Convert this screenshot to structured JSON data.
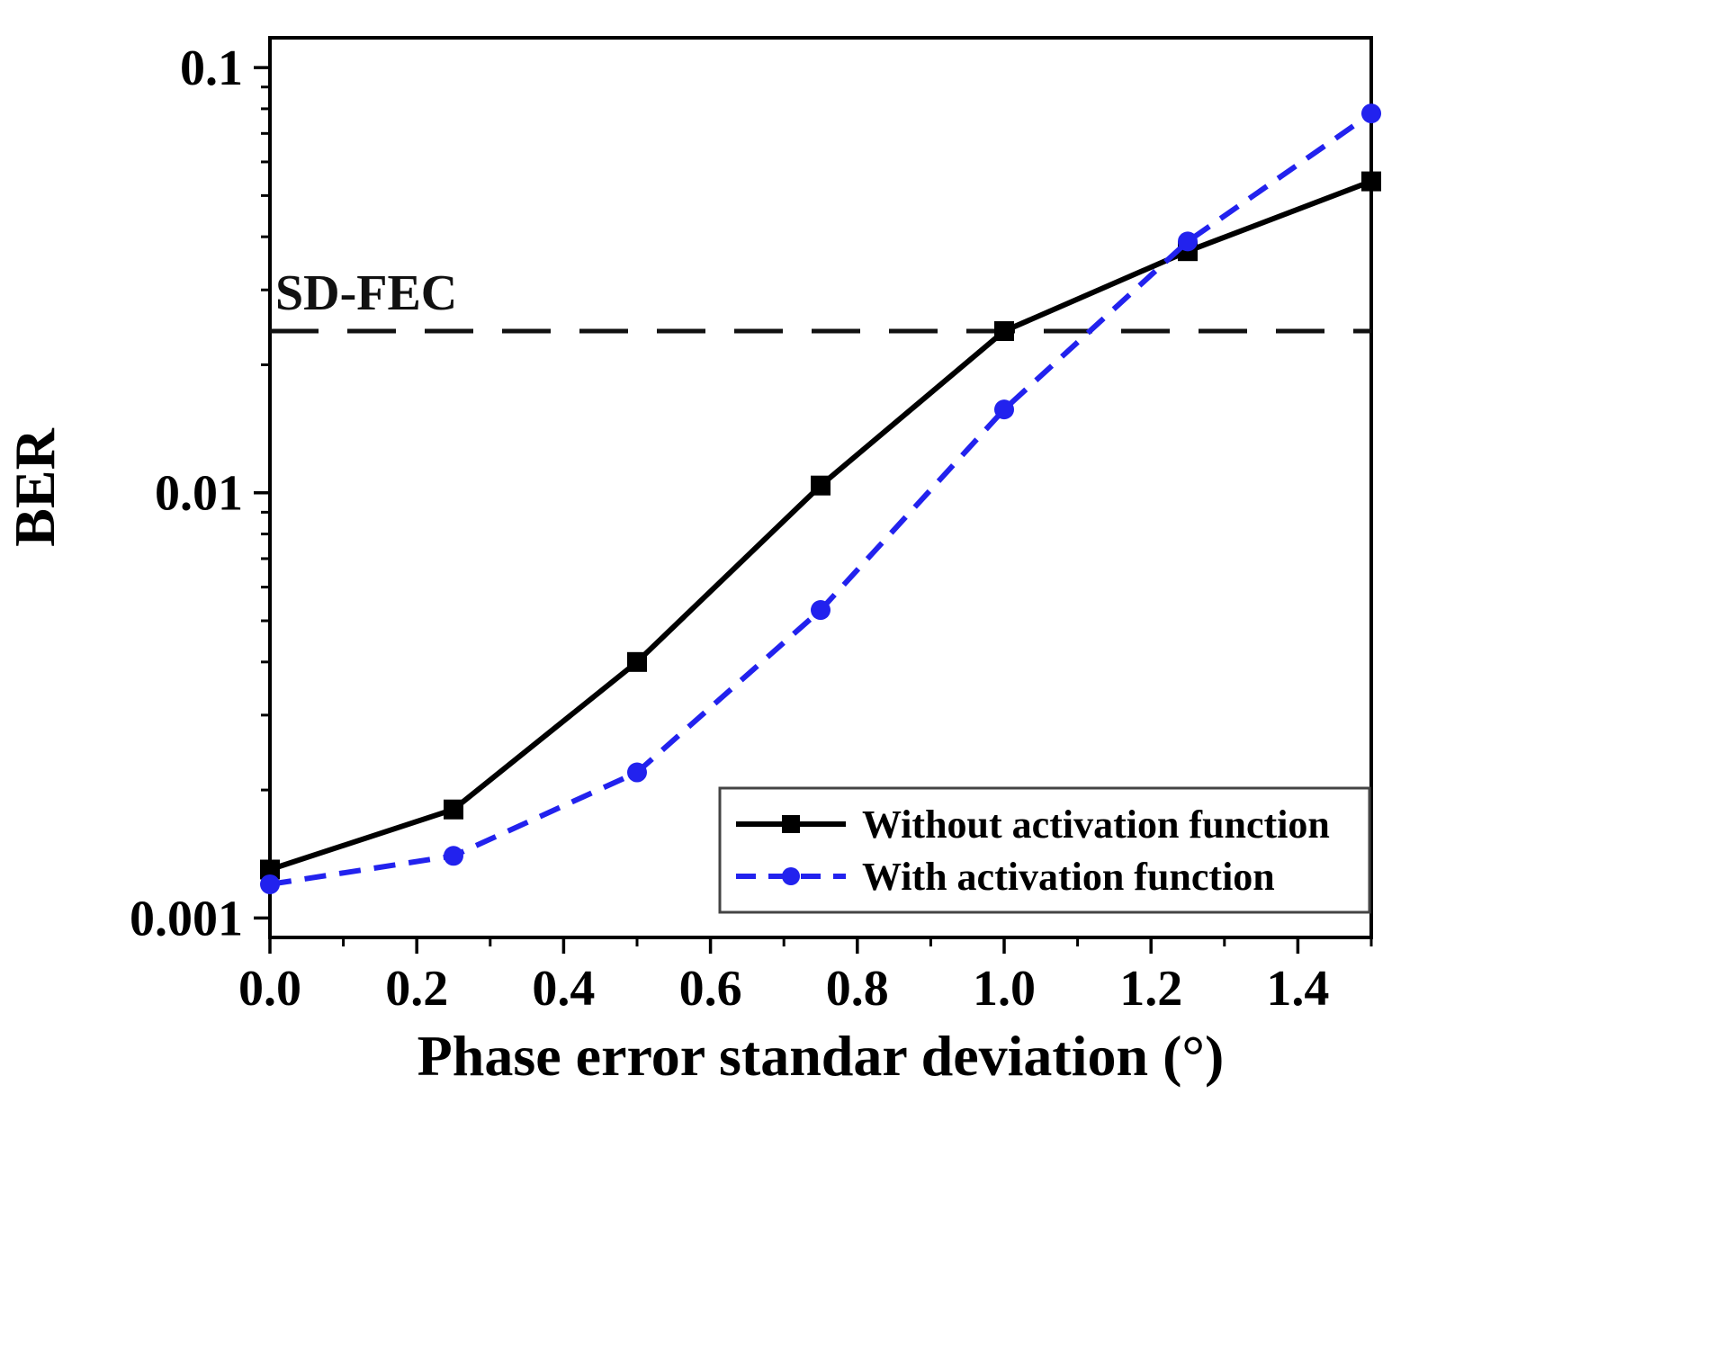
{
  "chart_data": {
    "type": "line",
    "title": "",
    "xlabel": "Phase error standar deviation (°)",
    "ylabel": "BER",
    "x_scale": "linear",
    "y_scale": "log",
    "xlim": [
      0.0,
      1.5
    ],
    "ylim": [
      0.0009,
      0.1175
    ],
    "x_ticks": [
      0.0,
      0.2,
      0.4,
      0.6,
      0.8,
      1.0,
      1.2,
      1.4
    ],
    "x_tick_labels": [
      "0.0",
      "0.2",
      "0.4",
      "0.6",
      "0.8",
      "1.0",
      "1.2",
      "1.4"
    ],
    "x_minor_ticks": [
      0.1,
      0.3,
      0.5,
      0.7,
      0.9,
      1.1,
      1.3,
      1.5
    ],
    "y_ticks": [
      0.001,
      0.01,
      0.1
    ],
    "y_tick_labels": [
      "0.001",
      "0.01",
      "0.1"
    ],
    "grid": false,
    "x": [
      0.0,
      0.25,
      0.5,
      0.75,
      1.0,
      1.25,
      1.5
    ],
    "series": [
      {
        "name": "Without activation function",
        "color": "#000000",
        "style": "solid",
        "marker": "square",
        "values": [
          0.0013,
          0.0018,
          0.004,
          0.0104,
          0.024,
          0.037,
          0.054
        ]
      },
      {
        "name": "With activation function",
        "color": "#2222ee",
        "style": "dashed",
        "marker": "circle",
        "values": [
          0.0012,
          0.0014,
          0.0022,
          0.0053,
          0.0157,
          0.039,
          0.078
        ]
      }
    ],
    "threshold": {
      "label": "SD-FEC",
      "value": 0.024,
      "color": "#111111",
      "style": "dashed"
    },
    "legend": {
      "position": "bottom-right",
      "entries": [
        "Without activation function",
        "With activation function"
      ]
    }
  }
}
